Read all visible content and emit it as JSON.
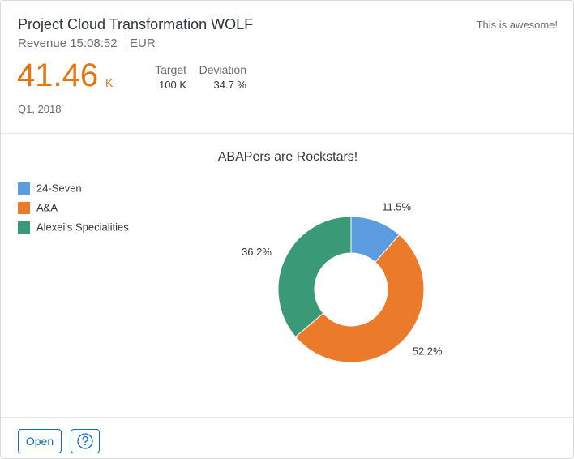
{
  "header": {
    "title": "Project Cloud Transformation WOLF",
    "subtitle": "Revenue 15:08:52",
    "unit": "EUR",
    "status": "This is awesome!",
    "kpi": {
      "value": 41.46,
      "scale": "K"
    },
    "target": {
      "label": "Target",
      "value": "100 K"
    },
    "deviation": {
      "label": "Deviation",
      "value": "34.7 %"
    },
    "details": "Q1, 2018"
  },
  "chart_data": {
    "type": "donut",
    "title": "ABAPers are Rockstars!",
    "categories": [
      "24-Seven",
      "A&A",
      "Alexei's Specialities"
    ],
    "values": [
      11.5,
      52.2,
      36.2
    ],
    "value_labels": [
      "11.5%",
      "52.2%",
      "36.2%"
    ],
    "colors": [
      "#5b9be0",
      "#ec7a2b",
      "#3a9a78"
    ],
    "legend": "top-left"
  },
  "footer": {
    "buttons": [
      "Open"
    ]
  }
}
